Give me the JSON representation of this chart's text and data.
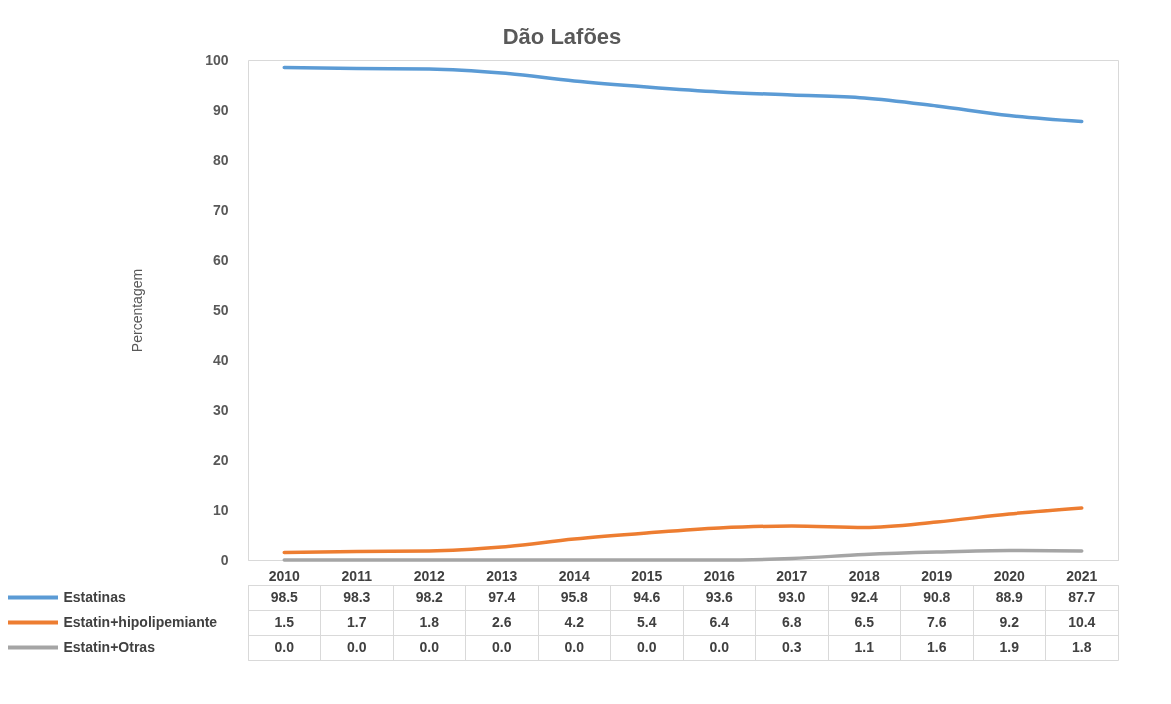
{
  "chart_data": {
    "type": "line",
    "title": "Dão Lafões",
    "ylabel": "Percentagem",
    "categories": [
      "2010",
      "2011",
      "2012",
      "2013",
      "2014",
      "2015",
      "2016",
      "2017",
      "2018",
      "2019",
      "2020",
      "2021"
    ],
    "series": [
      {
        "name": "Estatinas",
        "color": "#5b9bd5",
        "values": [
          98.5,
          98.3,
          98.2,
          97.4,
          95.8,
          94.6,
          93.6,
          93.0,
          92.4,
          90.8,
          88.9,
          87.7
        ],
        "value_labels": [
          "98.5",
          "98.3",
          "98.2",
          "97.4",
          "95.8",
          "94.6",
          "93.6",
          "93.0",
          "92.4",
          "90.8",
          "88.9",
          "87.7"
        ]
      },
      {
        "name": "Estatin+hipolipemiante",
        "color": "#ed7d31",
        "values": [
          1.5,
          1.7,
          1.8,
          2.6,
          4.2,
          5.4,
          6.4,
          6.8,
          6.5,
          7.6,
          9.2,
          10.4
        ],
        "value_labels": [
          "1.5",
          "1.7",
          "1.8",
          "2.6",
          "4.2",
          "5.4",
          "6.4",
          "6.8",
          "6.5",
          "7.6",
          "9.2",
          "10.4"
        ]
      },
      {
        "name": "Estatin+Otras",
        "color": "#a5a5a5",
        "values": [
          0.0,
          0.0,
          0.0,
          0.0,
          0.0,
          0.0,
          0.0,
          0.3,
          1.1,
          1.6,
          1.9,
          1.8
        ],
        "value_labels": [
          "0.0",
          "0.0",
          "0.0",
          "0.0",
          "0.0",
          "0.0",
          "0.0",
          "0.3",
          "1.1",
          "1.6",
          "1.9",
          "1.8"
        ]
      }
    ],
    "ylim": [
      0,
      100
    ],
    "yticks": [
      0,
      10,
      20,
      30,
      40,
      50,
      60,
      70,
      80,
      90,
      100
    ],
    "legend": "bottom"
  }
}
